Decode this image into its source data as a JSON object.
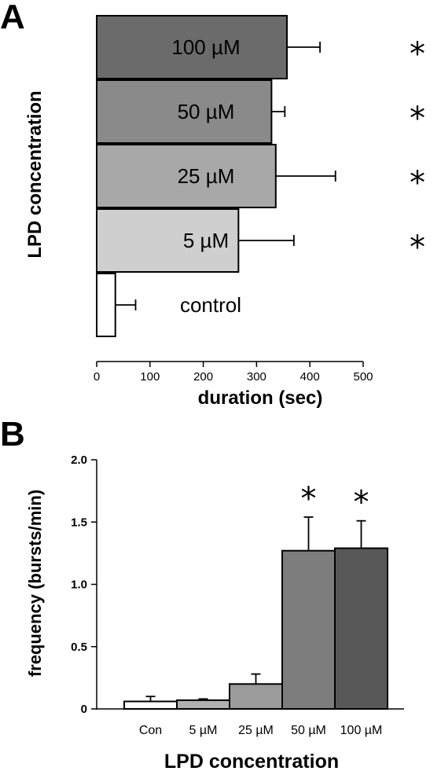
{
  "chart_data": [
    {
      "panel": "A",
      "type": "bar",
      "orientation": "horizontal",
      "categories": [
        "100 µM",
        "50 µM",
        "25 µM",
        "5 µM",
        "control"
      ],
      "values": [
        357,
        328,
        336,
        266,
        35
      ],
      "errors": [
        62,
        25,
        112,
        104,
        38
      ],
      "significant": [
        true,
        true,
        true,
        true,
        false
      ],
      "bar_colors": [
        "#6b6b6b",
        "#8a8a8a",
        "#a8a8a8",
        "#cfcfcf",
        "#ffffff"
      ],
      "significance_marker": "*",
      "xlabel": "duration (sec)",
      "ylabel": "LPD concentration",
      "xlim": [
        0,
        500
      ],
      "xticks": [
        0,
        100,
        200,
        300,
        400,
        500
      ],
      "grid": false
    },
    {
      "panel": "B",
      "type": "bar",
      "orientation": "vertical",
      "categories": [
        "Con",
        "5 µM",
        "25 µM",
        "50 µM",
        "100 µM"
      ],
      "values": [
        0.06,
        0.07,
        0.2,
        1.27,
        1.29
      ],
      "errors": [
        0.04,
        0.01,
        0.08,
        0.27,
        0.22
      ],
      "significant": [
        false,
        false,
        false,
        true,
        true
      ],
      "bar_colors": [
        "#ffffff",
        "#b0b0b0",
        "#9b9b9b",
        "#7d7d7d",
        "#585858"
      ],
      "significance_marker": "*",
      "xlabel": "LPD concentration",
      "ylabel": "frequency (bursts/min)",
      "ylim": [
        0,
        2.0
      ],
      "yticks": [
        "0",
        "0.5",
        "1.0",
        "1.5",
        "2.0"
      ],
      "grid": false
    }
  ],
  "panels": {
    "a_letter": "A",
    "b_letter": "B"
  }
}
